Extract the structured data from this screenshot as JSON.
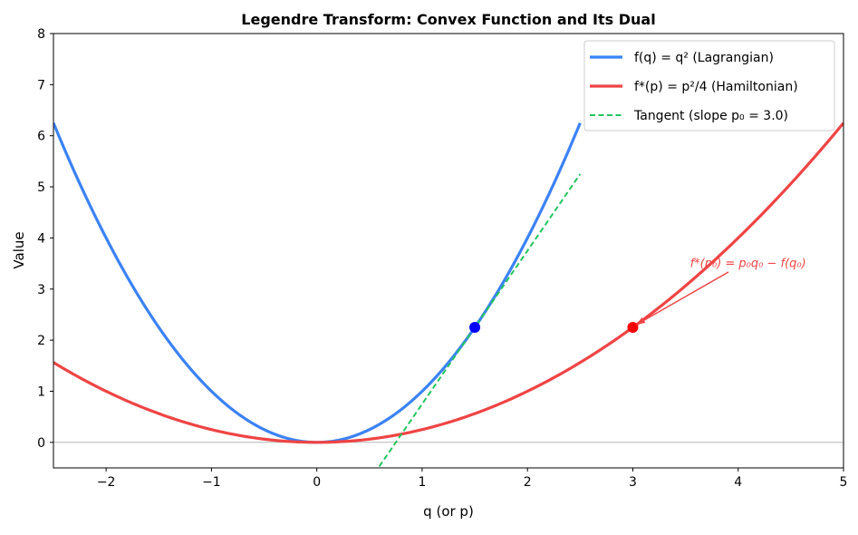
{
  "chart_data": {
    "type": "line",
    "title": "Legendre Transform: Convex Function and Its Dual",
    "xlabel": "q (or p)",
    "ylabel": "Value",
    "xlim": [
      -2.5,
      5
    ],
    "ylim": [
      -0.5,
      8
    ],
    "xticks": [
      -2,
      -1,
      0,
      1,
      2,
      3,
      4,
      5
    ],
    "yticks": [
      0,
      1,
      2,
      3,
      4,
      5,
      6,
      7,
      8
    ],
    "grid": false,
    "legend_position": "top-right",
    "series": [
      {
        "name": "f(q) = q² (Lagrangian)",
        "function": "q^2",
        "x_range": [
          -2.5,
          2.5
        ],
        "color": "#3b82f6",
        "style": "solid"
      },
      {
        "name": "f*(p) = p²/4 (Hamiltonian)",
        "function": "p^2/4",
        "x_range": [
          -2.5,
          5
        ],
        "color": "#ef4444",
        "style": "solid"
      },
      {
        "name": "Tangent (slope p₀ = 3.0)",
        "function": "3q - 2.25",
        "x_range": [
          0.5,
          2.5
        ],
        "color": "#22c55e",
        "style": "dashed"
      }
    ],
    "points": [
      {
        "x": 1.5,
        "y": 2.25,
        "color": "#0000ff"
      },
      {
        "x": 3.0,
        "y": 2.25,
        "color": "#ff0000"
      }
    ],
    "hline": {
      "y": 0,
      "color": "#aaaaaa"
    },
    "annotation": {
      "text": "f*(p₀) = p₀q₀ − f(q₀)",
      "text_at": [
        3.5,
        3.5
      ],
      "arrow_to": [
        3.0,
        2.25
      ],
      "color": "#ef4444"
    }
  }
}
